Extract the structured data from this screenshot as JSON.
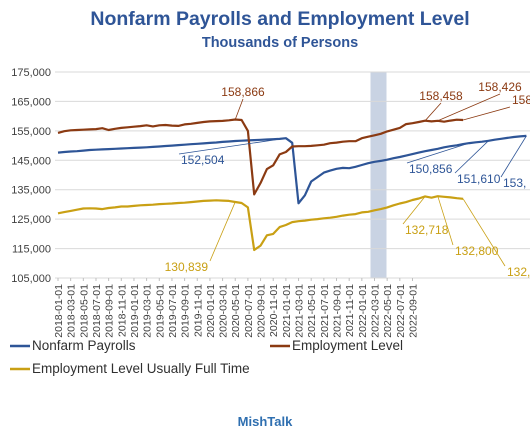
{
  "chart_data": {
    "type": "line",
    "title": "Nonfarm Payrolls and Employment Level",
    "subtitle": "Thousands of Persons",
    "ylim": [
      105000,
      175000
    ],
    "yticks": [
      105000,
      115000,
      125000,
      135000,
      145000,
      155000,
      165000,
      175000
    ],
    "ytick_labels": [
      "105,000",
      "115,000",
      "125,000",
      "135,000",
      "145,000",
      "155,000",
      "165,000",
      "175,000"
    ],
    "xtick_labels": [
      "2018-01-01",
      "2018-03-01",
      "2018-05-01",
      "2018-07-01",
      "2018-09-01",
      "2018-11-01",
      "2019-01-01",
      "2019-03-01",
      "2019-05-01",
      "2019-07-01",
      "2019-09-01",
      "2019-11-01",
      "2020-01-01",
      "2020-03-01",
      "2020-05-01",
      "2020-07-01",
      "2020-09-01",
      "2020-11-01",
      "2021-01-01",
      "2021-03-01",
      "2021-05-01",
      "2021-07-01",
      "2021-09-01",
      "2021-11-01",
      "2022-01-01",
      "2022-03-01",
      "2022-05-01",
      "2022-07-01",
      "2022-09-01"
    ],
    "recession_shading": {
      "start_index": 25,
      "end_index": 27
    },
    "grid": "horizontal",
    "legend_position": "bottom",
    "colors": {
      "payrolls": "#2e5597",
      "employment": "#8b3a12",
      "fulltime": "#c9a014",
      "title": "#2f5597",
      "recession": "#c9d3e3"
    },
    "series": [
      {
        "name": "Nonfarm Payrolls",
        "color_key": "payrolls",
        "values": [
          147600,
          147800,
          148000,
          148100,
          148300,
          148500,
          148600,
          148700,
          148800,
          148900,
          149000,
          149100,
          149200,
          149300,
          149400,
          149550,
          149700,
          149850,
          150000,
          150150,
          150300,
          150450,
          150600,
          150750,
          150900,
          151050,
          151250,
          151400,
          151550,
          151650,
          151750,
          151850,
          151950,
          152050,
          152150,
          152250,
          152504,
          150950,
          130400,
          133100,
          137800,
          139300,
          140800,
          141500,
          142100,
          142400,
          142300,
          142800,
          143400,
          144000,
          144500,
          144800,
          145200,
          145700,
          146100,
          146600,
          147100,
          147600,
          148100,
          148500,
          148900,
          149400,
          149800,
          150100,
          150500,
          150856,
          151100,
          151300,
          151610,
          152000,
          152300,
          152600,
          152900,
          153100,
          153300
        ]
      },
      {
        "name": "Employment Level",
        "color_key": "employment",
        "values": [
          154300,
          154900,
          155200,
          155300,
          155400,
          155500,
          155600,
          155900,
          155300,
          155700,
          156000,
          156200,
          156400,
          156600,
          156900,
          156500,
          156900,
          157000,
          156800,
          156700,
          157200,
          157400,
          157700,
          158000,
          158200,
          158300,
          158400,
          158600,
          158866,
          158700,
          155000,
          133400,
          137300,
          142000,
          143300,
          147000,
          147800,
          149700,
          149800,
          149800,
          149900,
          150100,
          150300,
          150800,
          151000,
          151300,
          151500,
          151500,
          152500,
          153000,
          153500,
          154000,
          154800,
          155400,
          156000,
          157300,
          157600,
          158000,
          158458,
          158200,
          158426,
          158100,
          158500,
          158800,
          158700
        ]
      },
      {
        "name": "Employment Level Usually Full Time",
        "color_key": "fulltime",
        "values": [
          127000,
          127400,
          127800,
          128200,
          128600,
          128700,
          128600,
          128400,
          128800,
          129000,
          129300,
          129300,
          129500,
          129700,
          129800,
          129900,
          130100,
          130200,
          130300,
          130500,
          130600,
          130800,
          131000,
          131200,
          131300,
          131400,
          131300,
          131200,
          130839,
          130500,
          129000,
          114500,
          116000,
          119500,
          120000,
          122300,
          123000,
          124000,
          124300,
          124500,
          124800,
          125000,
          125300,
          125500,
          125800,
          126200,
          126500,
          126700,
          127300,
          127500,
          128000,
          128400,
          129000,
          129700,
          130300,
          130800,
          131500,
          132000,
          132718,
          132300,
          132800,
          132600,
          132400,
          132100,
          131900
        ]
      }
    ],
    "annotations": [
      {
        "text": "158,866",
        "series": "employment",
        "index": 28
      },
      {
        "text": "152,504",
        "series": "payrolls",
        "index": 36
      },
      {
        "text": "130,839",
        "series": "fulltime",
        "index": 28
      },
      {
        "text": "158,458",
        "series": "employment",
        "index": 58
      },
      {
        "text": "158,426",
        "series": "employment",
        "index": 60
      },
      {
        "text": "158",
        "series": "employment",
        "index": 64
      },
      {
        "text": "150,856",
        "series": "payrolls",
        "index": 65
      },
      {
        "text": "151,610",
        "series": "payrolls",
        "index": 68
      },
      {
        "text": "153,",
        "series": "payrolls",
        "index": 74
      },
      {
        "text": "132,718",
        "series": "fulltime",
        "index": 58
      },
      {
        "text": "132,800",
        "series": "fulltime",
        "index": 60
      },
      {
        "text": "132,",
        "series": "fulltime",
        "index": 64
      }
    ],
    "footer": "MishTalk"
  }
}
